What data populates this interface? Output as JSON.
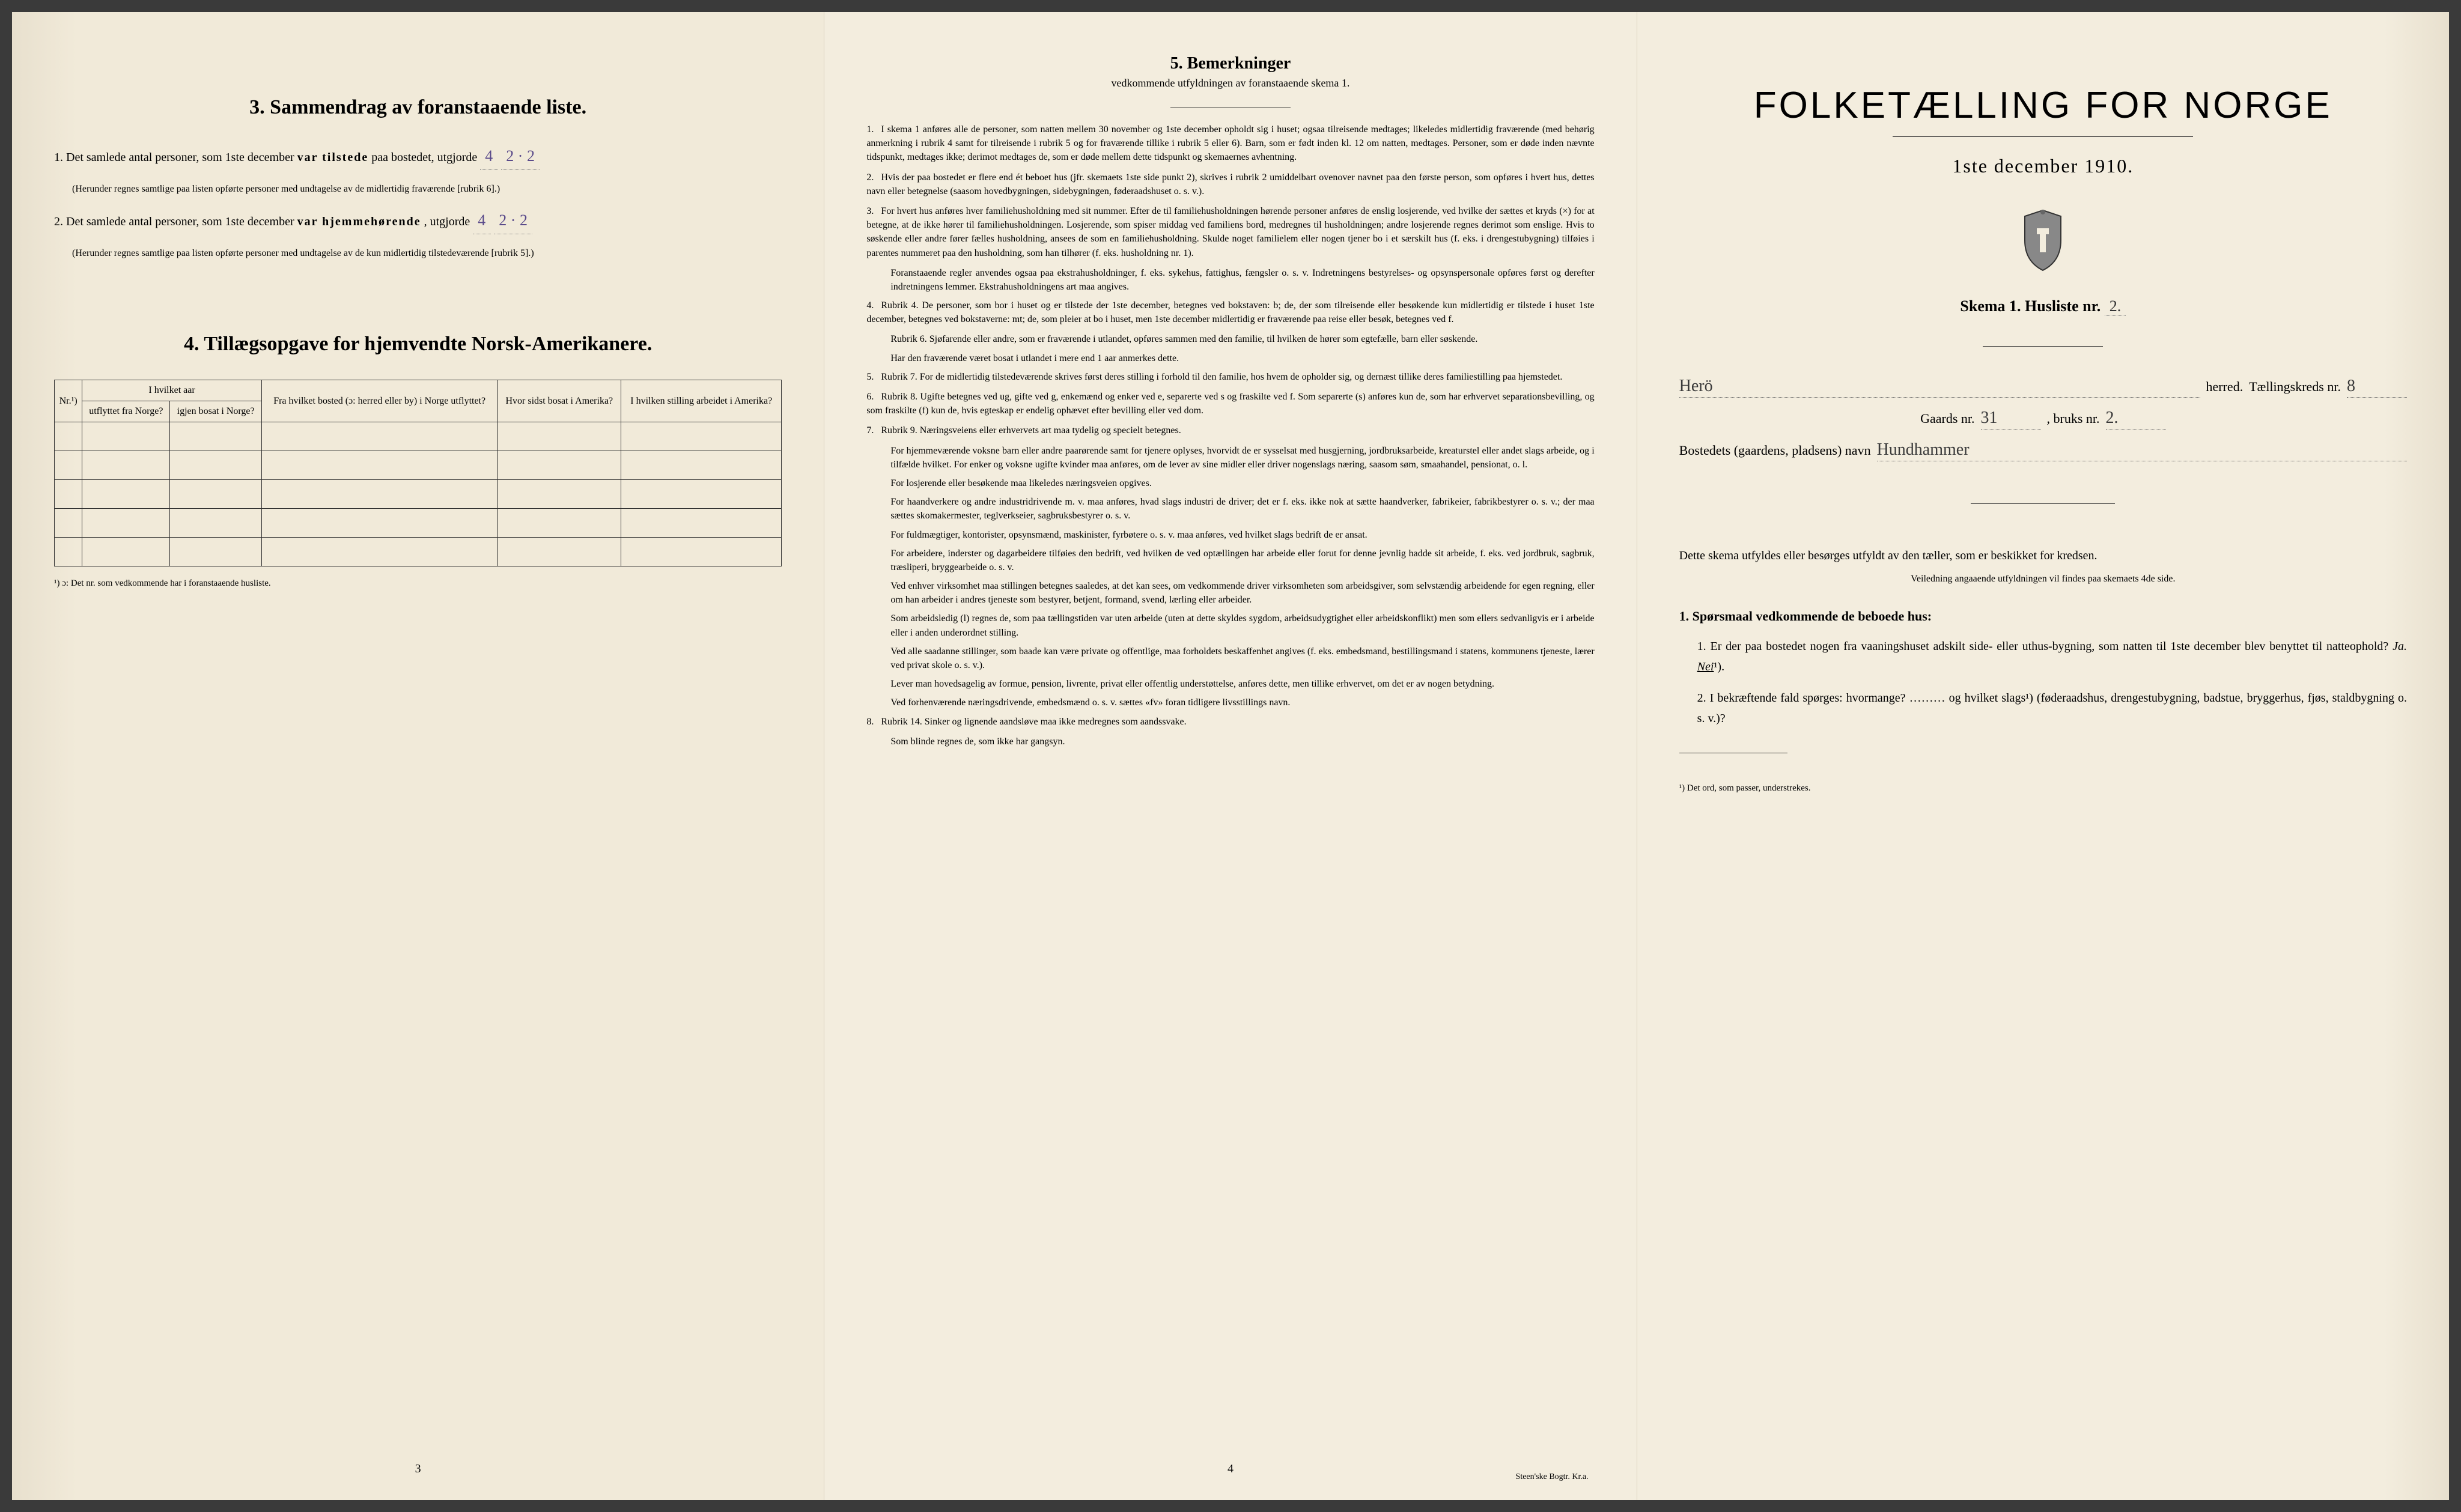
{
  "left": {
    "section3_title": "3.  Sammendrag av foranstaaende liste.",
    "item1_pre": "1.  Det samlede antal personer, som 1ste december",
    "item1_bold": "var tilstede",
    "item1_post": "paa bostedet, utgjorde",
    "item1_val1": "4",
    "item1_val2": "2 · 2",
    "item1_note": "(Herunder regnes samtlige paa listen opførte personer med undtagelse av de midlertidig fraværende [rubrik 6].)",
    "item2_pre": "2.  Det samlede antal personer, som 1ste december",
    "item2_bold": "var hjemmehørende",
    "item2_post": ", utgjorde",
    "item2_val1": "4",
    "item2_val2": "2 · 2",
    "item2_note": "(Herunder regnes samtlige paa listen opførte personer med undtagelse av de kun midlertidig tilstedeværende [rubrik 5].)",
    "section4_title": "4.  Tillægsopgave for hjemvendte Norsk-Amerikanere.",
    "table": {
      "header_row1": [
        "Nr.¹)",
        "I hvilket aar",
        "Fra hvilket bosted (ɔ: herred eller by) i Norge utflyttet?",
        "Hvor sidst bosat i Amerika?",
        "I hvilken stilling arbeidet i Amerika?"
      ],
      "header_row2_col2a": "utflyttet fra Norge?",
      "header_row2_col2b": "igjen bosat i Norge?",
      "empty_rows": 5
    },
    "footnote": "¹) ɔ: Det nr. som vedkommende har i foranstaaende husliste.",
    "page_num": "3"
  },
  "middle": {
    "title": "5.  Bemerkninger",
    "subtitle": "vedkommende utfyldningen av foranstaaende skema 1.",
    "items": [
      {
        "n": "1.",
        "t": "I skema 1 anføres alle de personer, som natten mellem 30 november og 1ste december opholdt sig i huset; ogsaa tilreisende medtages; likeledes midlertidig fraværende (med behørig anmerkning i rubrik 4 samt for tilreisende i rubrik 5 og for fraværende tillike i rubrik 5 eller 6). Barn, som er født inden kl. 12 om natten, medtages. Personer, som er døde inden nævnte tidspunkt, medtages ikke; derimot medtages de, som er døde mellem dette tidspunkt og skemaernes avhentning."
      },
      {
        "n": "2.",
        "t": "Hvis der paa bostedet er flere end ét beboet hus (jfr. skemaets 1ste side punkt 2), skrives i rubrik 2 umiddelbart ovenover navnet paa den første person, som opføres i hvert hus, dettes navn eller betegnelse (saasom hovedbygningen, sidebygningen, føderaadshuset o. s. v.)."
      },
      {
        "n": "3.",
        "t": "For hvert hus anføres hver familiehusholdning med sit nummer. Efter de til familiehusholdningen hørende personer anføres de enslig losjerende, ved hvilke der sættes et kryds (×) for at betegne, at de ikke hører til familiehusholdningen. Losjerende, som spiser middag ved familiens bord, medregnes til husholdningen; andre losjerende regnes derimot som enslige. Hvis to søskende eller andre fører fælles husholdning, ansees de som en familiehusholdning. Skulde noget familielem eller nogen tjener bo i et særskilt hus (f. eks. i drengestubygning) tilføies i parentes nummeret paa den husholdning, som han tilhører (f. eks. husholdning nr. 1)."
      },
      {
        "sub": true,
        "t": "Foranstaaende regler anvendes ogsaa paa ekstrahusholdninger, f. eks. sykehus, fattighus, fængsler o. s. v. Indretningens bestyrelses- og opsynspersonale opføres først og derefter indretningens lemmer. Ekstrahusholdningens art maa angives."
      },
      {
        "n": "4.",
        "t": "Rubrik 4. De personer, som bor i huset og er tilstede der 1ste december, betegnes ved bokstaven: b; de, der som tilreisende eller besøkende kun midlertidig er tilstede i huset 1ste december, betegnes ved bokstaverne: mt; de, som pleier at bo i huset, men 1ste december midlertidig er fraværende paa reise eller besøk, betegnes ved f."
      },
      {
        "sub": true,
        "t": "Rubrik 6. Sjøfarende eller andre, som er fraværende i utlandet, opføres sammen med den familie, til hvilken de hører som egtefælle, barn eller søskende."
      },
      {
        "sub": true,
        "t": "Har den fraværende været bosat i utlandet i mere end 1 aar anmerkes dette."
      },
      {
        "n": "5.",
        "t": "Rubrik 7. For de midlertidig tilstedeværende skrives først deres stilling i forhold til den familie, hos hvem de opholder sig, og dernæst tillike deres familiestilling paa hjemstedet."
      },
      {
        "n": "6.",
        "t": "Rubrik 8. Ugifte betegnes ved ug, gifte ved g, enkemænd og enker ved e, separerte ved s og fraskilte ved f. Som separerte (s) anføres kun de, som har erhvervet separationsbevilling, og som fraskilte (f) kun de, hvis egteskap er endelig ophævet efter bevilling eller ved dom."
      },
      {
        "n": "7.",
        "t": "Rubrik 9. Næringsveiens eller erhvervets art maa tydelig og specielt betegnes."
      },
      {
        "sub": true,
        "t": "For hjemmeværende voksne barn eller andre paarørende samt for tjenere oplyses, hvorvidt de er sysselsat med husgjerning, jordbruksarbeide, kreaturstel eller andet slags arbeide, og i tilfælde hvilket. For enker og voksne ugifte kvinder maa anføres, om de lever av sine midler eller driver nogenslags næring, saasom søm, smaahandel, pensionat, o. l."
      },
      {
        "sub": true,
        "t": "For losjerende eller besøkende maa likeledes næringsveien opgives."
      },
      {
        "sub": true,
        "t": "For haandverkere og andre industridrivende m. v. maa anføres, hvad slags industri de driver; det er f. eks. ikke nok at sætte haandverker, fabrikeier, fabrikbestyrer o. s. v.; der maa sættes skomakermester, teglverkseier, sagbruksbestyrer o. s. v."
      },
      {
        "sub": true,
        "t": "For fuldmægtiger, kontorister, opsynsmænd, maskinister, fyrbøtere o. s. v. maa anføres, ved hvilket slags bedrift de er ansat."
      },
      {
        "sub": true,
        "t": "For arbeidere, inderster og dagarbeidere tilføies den bedrift, ved hvilken de ved optællingen har arbeide eller forut for denne jevnlig hadde sit arbeide, f. eks. ved jordbruk, sagbruk, træsliperi, bryggearbeide o. s. v."
      },
      {
        "sub": true,
        "t": "Ved enhver virksomhet maa stillingen betegnes saaledes, at det kan sees, om vedkommende driver virksomheten som arbeidsgiver, som selvstændig arbeidende for egen regning, eller om han arbeider i andres tjeneste som bestyrer, betjent, formand, svend, lærling eller arbeider."
      },
      {
        "sub": true,
        "t": "Som arbeidsledig (l) regnes de, som paa tællingstiden var uten arbeide (uten at dette skyldes sygdom, arbeidsudygtighet eller arbeidskonflikt) men som ellers sedvanligvis er i arbeide eller i anden underordnet stilling."
      },
      {
        "sub": true,
        "t": "Ved alle saadanne stillinger, som baade kan være private og offentlige, maa forholdets beskaffenhet angives (f. eks. embedsmand, bestillingsmand i statens, kommunens tjeneste, lærer ved privat skole o. s. v.)."
      },
      {
        "sub": true,
        "t": "Lever man hovedsagelig av formue, pension, livrente, privat eller offentlig understøttelse, anføres dette, men tillike erhvervet, om det er av nogen betydning."
      },
      {
        "sub": true,
        "t": "Ved forhenværende næringsdrivende, embedsmænd o. s. v. sættes «fv» foran tidligere livsstillings navn."
      },
      {
        "n": "8.",
        "t": "Rubrik 14. Sinker og lignende aandsløve maa ikke medregnes som aandssvake."
      },
      {
        "sub": true,
        "t": "Som blinde regnes de, som ikke har gangsyn."
      }
    ],
    "page_num": "4",
    "printer": "Steen'ske Bogtr.   Kr.a."
  },
  "right": {
    "title": "FOLKETÆLLING FOR NORGE",
    "date": "1ste december 1910.",
    "skema_label": "Skema 1.   Husliste nr.",
    "husliste_nr": "2.",
    "line1_hand": "Herö",
    "line1_label1": "herred.",
    "line1_label2": "Tællingskreds nr.",
    "line1_val": "8",
    "line2_label1": "Gaards nr.",
    "line2_val1": "31",
    "line2_label2": ", bruks nr.",
    "line2_val2": "2.",
    "line3_label": "Bostedets (gaardens, pladsens) navn",
    "line3_val": "Hundhammer",
    "instruction1": "Dette skema utfyldes eller besørges utfyldt av den tæller, som er beskikket for kredsen.",
    "instruction2": "Veiledning angaaende utfyldningen vil findes paa skemaets 4de side.",
    "q_heading": "1. Spørsmaal vedkommende de beboede hus:",
    "q1": "1.  Er der paa bostedet nogen fra vaaningshuset adskilt side- eller uthus-bygning, som natten til 1ste december blev benyttet til natteophold?",
    "q1_ja": "Ja.",
    "q1_nei": "Nei",
    "q1_sup": "¹).",
    "q2": "2.  I bekræftende fald spørges: hvormange? ……… og hvilket slags¹) (føderaadshus, drengestubygning, badstue, bryggerhus, fjøs, staldbygning o. s. v.)?",
    "footnote": "¹) Det ord, som passer, understrekes."
  }
}
